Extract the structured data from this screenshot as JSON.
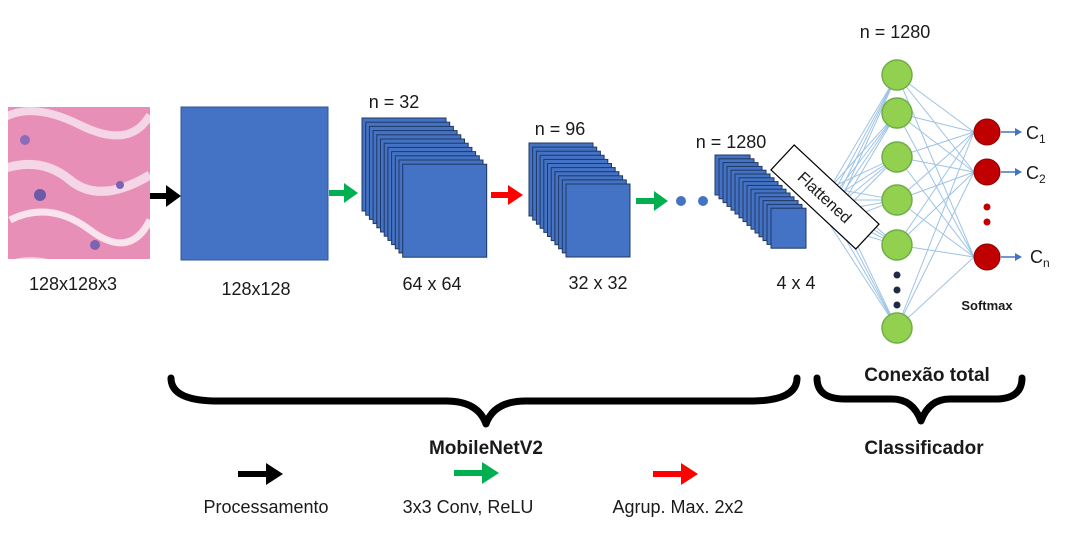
{
  "input_image": {
    "label": "128x128x3",
    "semantic": "histology-patch-image"
  },
  "layers": [
    {
      "label": "128x128",
      "n_label": ""
    },
    {
      "label": "64 x 64",
      "n_label": "n = 32"
    },
    {
      "label": "32 x 32",
      "n_label": "n = 96"
    },
    {
      "label": "4 x 4",
      "n_label": "n = 1280"
    }
  ],
  "flatten_label": "Flattened",
  "fc": {
    "n_label": "n = 1280",
    "section_label": "Conexão total"
  },
  "outputs": {
    "c1": "C",
    "c1_sub": "1",
    "c2": "C",
    "c2_sub": "2",
    "cn": "C",
    "cn_sub": "n",
    "softmax": "Softmax"
  },
  "groups": {
    "backbone": "MobileNetV2",
    "classifier": "Classificador"
  },
  "legend": [
    {
      "label": "Processamento",
      "color": "#000000"
    },
    {
      "label": "3x3 Conv, ReLU",
      "color": "#00b050"
    },
    {
      "label": "Agrup. Max. 2x2",
      "color": "#ff0000"
    }
  ],
  "colors": {
    "layer_fill": "#4472c4",
    "layer_stroke": "#2f5597",
    "node_green": "#92d050",
    "node_green_stroke": "#70ad47",
    "node_red": "#c00000",
    "connection": "#9dc3e6",
    "dot_blue": "#4472c4",
    "dark_dot": "#1f2a44"
  }
}
